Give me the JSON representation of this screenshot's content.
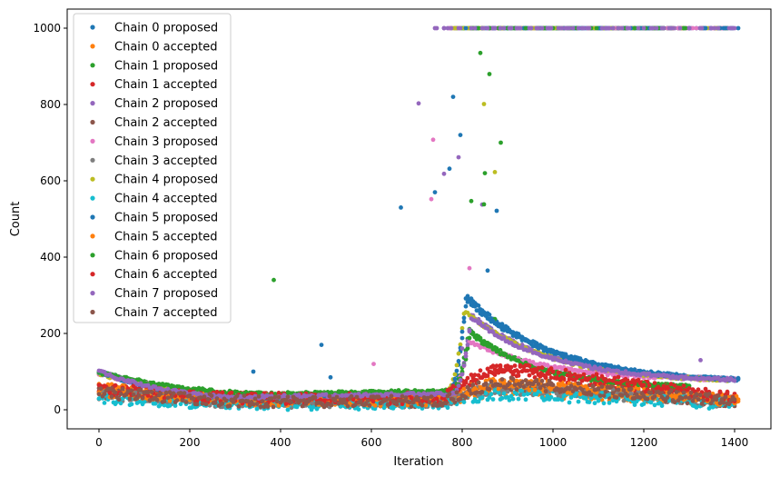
{
  "chart_data": {
    "type": "scatter",
    "title": "",
    "xlabel": "Iteration",
    "ylabel": "Count",
    "xlim": [
      -70,
      1480
    ],
    "ylim": [
      -50,
      1050
    ],
    "xticks": [
      0,
      200,
      400,
      600,
      800,
      1000,
      1200,
      1400
    ],
    "xtick_labels": [
      "0",
      "200",
      "400",
      "600",
      "800",
      "1000",
      "1200",
      "1400"
    ],
    "yticks": [
      0,
      200,
      400,
      600,
      800,
      1000
    ],
    "ytick_labels": [
      "0",
      "200",
      "400",
      "600",
      "800",
      "1000"
    ],
    "grid": false,
    "legend_position": "top-left",
    "series": [
      {
        "name": "Chain 0 proposed",
        "color": "#1f77b4",
        "kind": "proposed",
        "start": 100,
        "trough": 30,
        "trough_x": 320,
        "peak": 300,
        "peak_x": 810,
        "end": 70,
        "saturate_from": 780,
        "x_max": 1410
      },
      {
        "name": "Chain 0 accepted",
        "color": "#ff7f0e",
        "kind": "accepted",
        "start": 55,
        "base": 15,
        "peak": 40,
        "x_max": 1410
      },
      {
        "name": "Chain 1 proposed",
        "color": "#2ca02c",
        "kind": "proposed",
        "start": 98,
        "trough": 40,
        "trough_x": 380,
        "peak": 210,
        "peak_x": 815,
        "end": 55,
        "saturate_from": 790,
        "x_max": 1300
      },
      {
        "name": "Chain 1 accepted",
        "color": "#d62728",
        "kind": "accepted",
        "start": 50,
        "base": 20,
        "peak": 95,
        "x_max": 1400
      },
      {
        "name": "Chain 2 proposed",
        "color": "#9467bd",
        "kind": "proposed",
        "start": 100,
        "trough": 35,
        "trough_x": 330,
        "peak": 250,
        "peak_x": 820,
        "end": 72,
        "saturate_from": 750,
        "x_max": 1400
      },
      {
        "name": "Chain 2 accepted",
        "color": "#8c564b",
        "kind": "accepted",
        "start": 45,
        "base": 12,
        "peak": 55,
        "x_max": 1400
      },
      {
        "name": "Chain 3 proposed",
        "color": "#e377c2",
        "kind": "proposed",
        "start": 96,
        "trough": 38,
        "trough_x": 350,
        "peak": 180,
        "peak_x": 815,
        "end": 75,
        "saturate_from": 760,
        "x_max": 1390
      },
      {
        "name": "Chain 3 accepted",
        "color": "#7f7f7f",
        "kind": "accepted",
        "start": 40,
        "base": 10,
        "peak": 45,
        "x_max": 1400
      },
      {
        "name": "Chain 4 proposed",
        "color": "#bcbd22",
        "kind": "proposed",
        "start": 95,
        "trough": 36,
        "trough_x": 340,
        "peak": 260,
        "peak_x": 805,
        "end": 70,
        "saturate_from": 770,
        "x_max": 1390
      },
      {
        "name": "Chain 4 accepted",
        "color": "#17becf",
        "kind": "accepted",
        "start": 30,
        "base": 5,
        "peak": 30,
        "x_max": 1400
      },
      {
        "name": "Chain 5 proposed",
        "color": "#1f77b4",
        "kind": "proposed",
        "start": 100,
        "trough": 32,
        "trough_x": 300,
        "peak": 290,
        "peak_x": 808,
        "end": 70,
        "saturate_from": 785,
        "x_max": 1410
      },
      {
        "name": "Chain 5 accepted",
        "color": "#ff7f0e",
        "kind": "accepted",
        "start": 50,
        "base": 15,
        "peak": 60,
        "x_max": 1410
      },
      {
        "name": "Chain 6 proposed",
        "color": "#2ca02c",
        "kind": "proposed",
        "start": 98,
        "trough": 42,
        "trough_x": 390,
        "peak": 200,
        "peak_x": 818,
        "end": 55,
        "saturate_from": 800,
        "x_max": 1300
      },
      {
        "name": "Chain 6 accepted",
        "color": "#d62728",
        "kind": "accepted",
        "start": 55,
        "base": 20,
        "peak": 100,
        "x_max": 1400
      },
      {
        "name": "Chain 7 proposed",
        "color": "#9467bd",
        "kind": "proposed",
        "start": 100,
        "trough": 33,
        "trough_x": 320,
        "peak": 240,
        "peak_x": 820,
        "end": 72,
        "saturate_from": 740,
        "x_max": 1400
      },
      {
        "name": "Chain 7 accepted",
        "color": "#8c564b",
        "kind": "accepted",
        "start": 45,
        "base": 12,
        "peak": 60,
        "x_max": 1400
      }
    ]
  }
}
